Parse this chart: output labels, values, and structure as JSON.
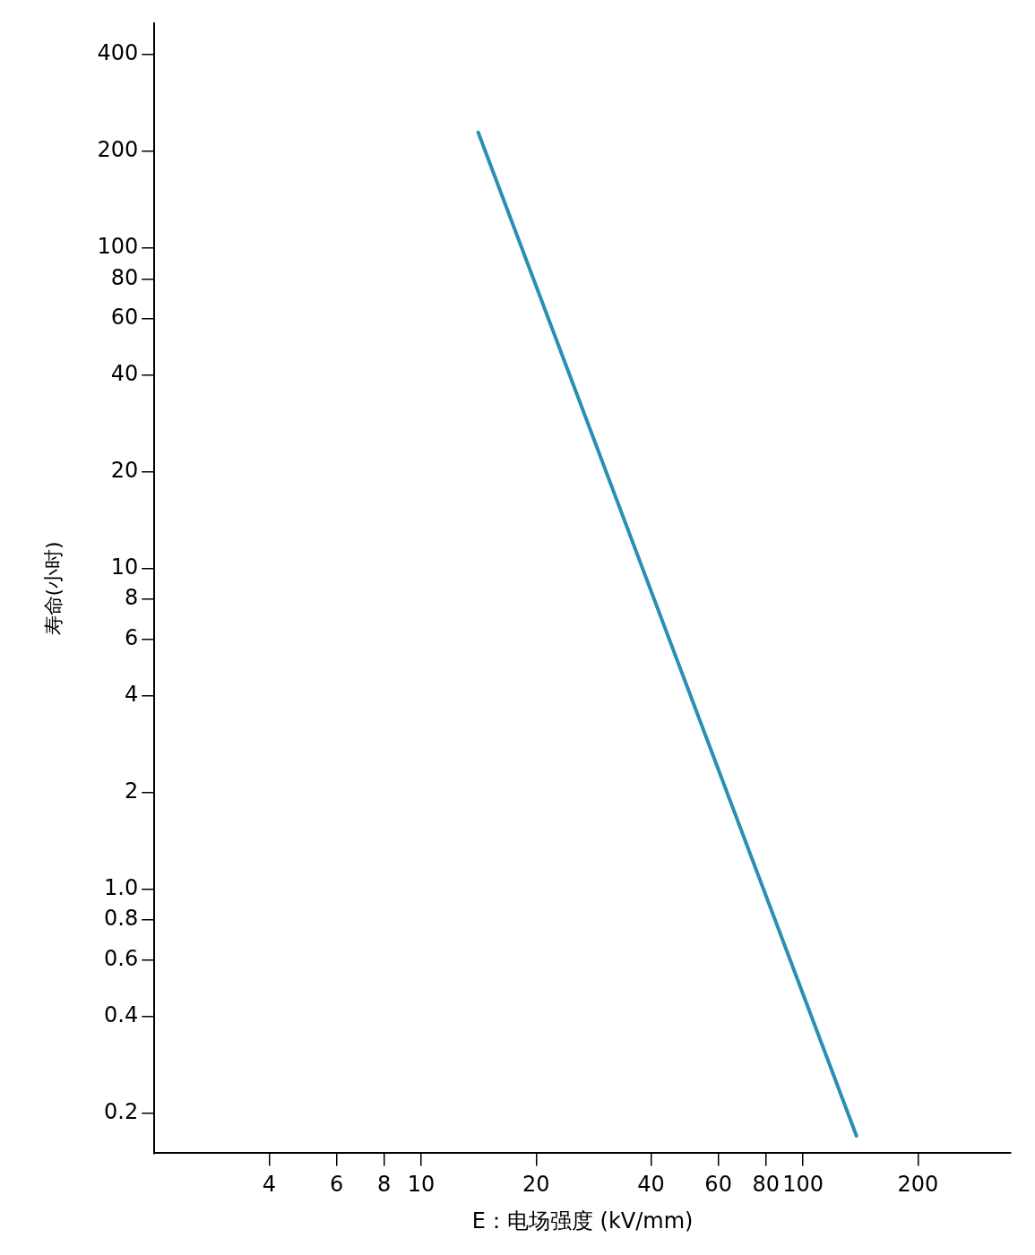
{
  "chart_data": {
    "type": "line",
    "xlabel": "E：电场强度 (kV/mm)",
    "ylabel": "寿命(小时)",
    "log": "xy",
    "grid": false,
    "legend": false,
    "marker": "none",
    "series": [
      {
        "color": "#2b8fb5",
        "x": [
          14.1,
          138
        ],
        "values": [
          229,
          0.17
        ]
      }
    ],
    "xlim": [
      2,
      350
    ],
    "xticks": [
      4,
      6,
      8,
      10,
      20,
      40,
      60,
      80,
      100,
      200
    ],
    "ylim": [
      0.15,
      500
    ],
    "yticks": [
      {
        "value": 0.2,
        "label": "0.2"
      },
      {
        "value": 0.4,
        "label": "0.4"
      },
      {
        "value": 0.6,
        "label": "0.6"
      },
      {
        "value": 0.8,
        "label": "0.8"
      },
      {
        "value": 1,
        "label": "1.0"
      },
      2,
      4,
      6,
      8,
      10,
      20,
      40,
      60,
      80,
      100,
      200,
      400
    ]
  }
}
